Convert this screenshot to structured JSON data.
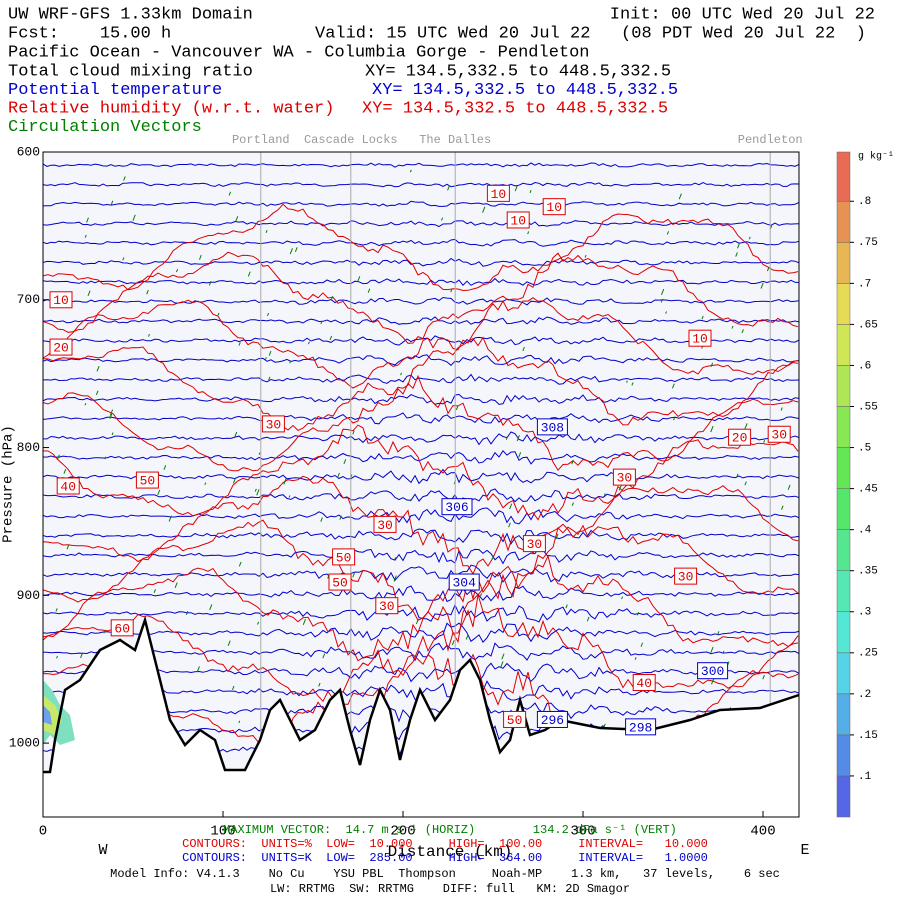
{
  "chart_data": {
    "type": "cross-section",
    "title": "UW WRF-GFS 1.33km Domain",
    "init": "Init: 00 UTC Wed 20 Jul 22",
    "forecast": "Fcst:    15.00 h",
    "valid": "Valid: 15 UTC Wed 20 Jul 22   (08 PDT Wed 20 Jul 22  )",
    "subtitle": "Pacific Ocean - Vancouver WA - Columbia Gorge - Pendleton",
    "fields": [
      {
        "name": "Total cloud mixing ratio",
        "color": "#000000",
        "xy": "XY= 134.5,332.5 to 448.5,332.5"
      },
      {
        "name": "Potential temperature",
        "color": "#0000cc",
        "xy": "XY= 134.5,332.5 to 448.5,332.5",
        "contour_labels": [
          {
            "x": 283,
            "y": 786,
            "value": 308
          },
          {
            "x": 230,
            "y": 840,
            "value": 306
          },
          {
            "x": 234,
            "y": 891,
            "value": 304
          },
          {
            "x": 372,
            "y": 951,
            "value": 300
          },
          {
            "x": 283,
            "y": 984,
            "value": 296
          },
          {
            "x": 332,
            "y": 989,
            "value": 298
          }
        ]
      },
      {
        "name": "Relative humidity (w.r.t. water)",
        "color": "#dd0000",
        "xy": "XY= 134.5,332.5 to 448.5,332.5",
        "contour_labels": [
          {
            "x": 253,
            "y": 628,
            "value": 10
          },
          {
            "x": 264,
            "y": 646,
            "value": 10
          },
          {
            "x": 284,
            "y": 637,
            "value": 10
          },
          {
            "x": 10,
            "y": 700,
            "value": 10
          },
          {
            "x": 365,
            "y": 726,
            "value": 10
          },
          {
            "x": 10,
            "y": 732,
            "value": 20
          },
          {
            "x": 128,
            "y": 784,
            "value": 30
          },
          {
            "x": 387,
            "y": 793,
            "value": 20
          },
          {
            "x": 409,
            "y": 791,
            "value": 30
          },
          {
            "x": 58,
            "y": 822,
            "value": 50
          },
          {
            "x": 14,
            "y": 826,
            "value": 40
          },
          {
            "x": 323,
            "y": 820,
            "value": 30
          },
          {
            "x": 190,
            "y": 852,
            "value": 30
          },
          {
            "x": 273,
            "y": 865,
            "value": 30
          },
          {
            "x": 167,
            "y": 874,
            "value": 50
          },
          {
            "x": 165,
            "y": 891,
            "value": 50
          },
          {
            "x": 357,
            "y": 887,
            "value": 30
          },
          {
            "x": 191,
            "y": 907,
            "value": 30
          },
          {
            "x": 44,
            "y": 922,
            "value": 60
          },
          {
            "x": 334,
            "y": 959,
            "value": 40
          },
          {
            "x": 262,
            "y": 984,
            "value": 50
          }
        ]
      },
      {
        "name": "Circulation Vectors",
        "color": "#008000"
      }
    ],
    "locations": [
      {
        "name": "Portland",
        "x": 121
      },
      {
        "name": "Cascade Locks",
        "x": 171
      },
      {
        "name": "The Dalles",
        "x": 229
      },
      {
        "name": "Pendleton",
        "x": 404
      }
    ],
    "xlim": [
      0,
      420
    ],
    "xticks": [
      0,
      100,
      200,
      300,
      400
    ],
    "ylim": [
      600,
      1050
    ],
    "yticks": [
      600,
      700,
      800,
      900,
      1000
    ],
    "xlabel": "Distance (km)",
    "ylabel": "Pressure (hPa)",
    "west": "W",
    "east": "E",
    "colorbar": {
      "label": "g kg⁻¹",
      "lim": [
        0.05,
        0.86
      ],
      "ticks": [
        {
          "value": 0.1,
          "label": ".1"
        },
        {
          "value": 0.15,
          "label": ".15"
        },
        {
          "value": 0.2,
          "label": ".2"
        },
        {
          "value": 0.25,
          "label": ".25"
        },
        {
          "value": 0.3,
          "label": ".3"
        },
        {
          "value": 0.35,
          "label": ".35"
        },
        {
          "value": 0.4,
          "label": ".4"
        },
        {
          "value": 0.45,
          "label": ".45"
        },
        {
          "value": 0.5,
          "label": ".5"
        },
        {
          "value": 0.55,
          "label": ".55"
        },
        {
          "value": 0.6,
          "label": ".6"
        },
        {
          "value": 0.65,
          "label": ".65"
        },
        {
          "value": 0.7,
          "label": ".7"
        },
        {
          "value": 0.75,
          "label": ".75"
        },
        {
          "value": 0.8,
          "label": ".8"
        }
      ]
    },
    "footer": [
      {
        "text": "MAXIMUM VECTOR:  14.7 m s⁻¹ (HORIZ)        134.2 dPa s⁻¹ (VERT)",
        "color": "#008000"
      },
      {
        "text": "CONTOURS:  UNITS=%  LOW=  10.000     HIGH=  100.00     INTERVAL=   10.000",
        "color": "#dd0000"
      },
      {
        "text": "CONTOURS:  UNITS=K  LOW=  285.00     HIGH=  364.00     INTERVAL=   1.0000",
        "color": "#0000cc"
      },
      {
        "text": "Model Info: V4.1.3    No Cu    YSU PBL  Thompson     Noah-MP    1.3 km,   37 levels,    6 sec",
        "color": "#000000"
      },
      {
        "text": "LW: RRTMG  SW: RRTMG    DIFF: full   KM: 2D Smagor",
        "color": "#000000"
      }
    ]
  }
}
